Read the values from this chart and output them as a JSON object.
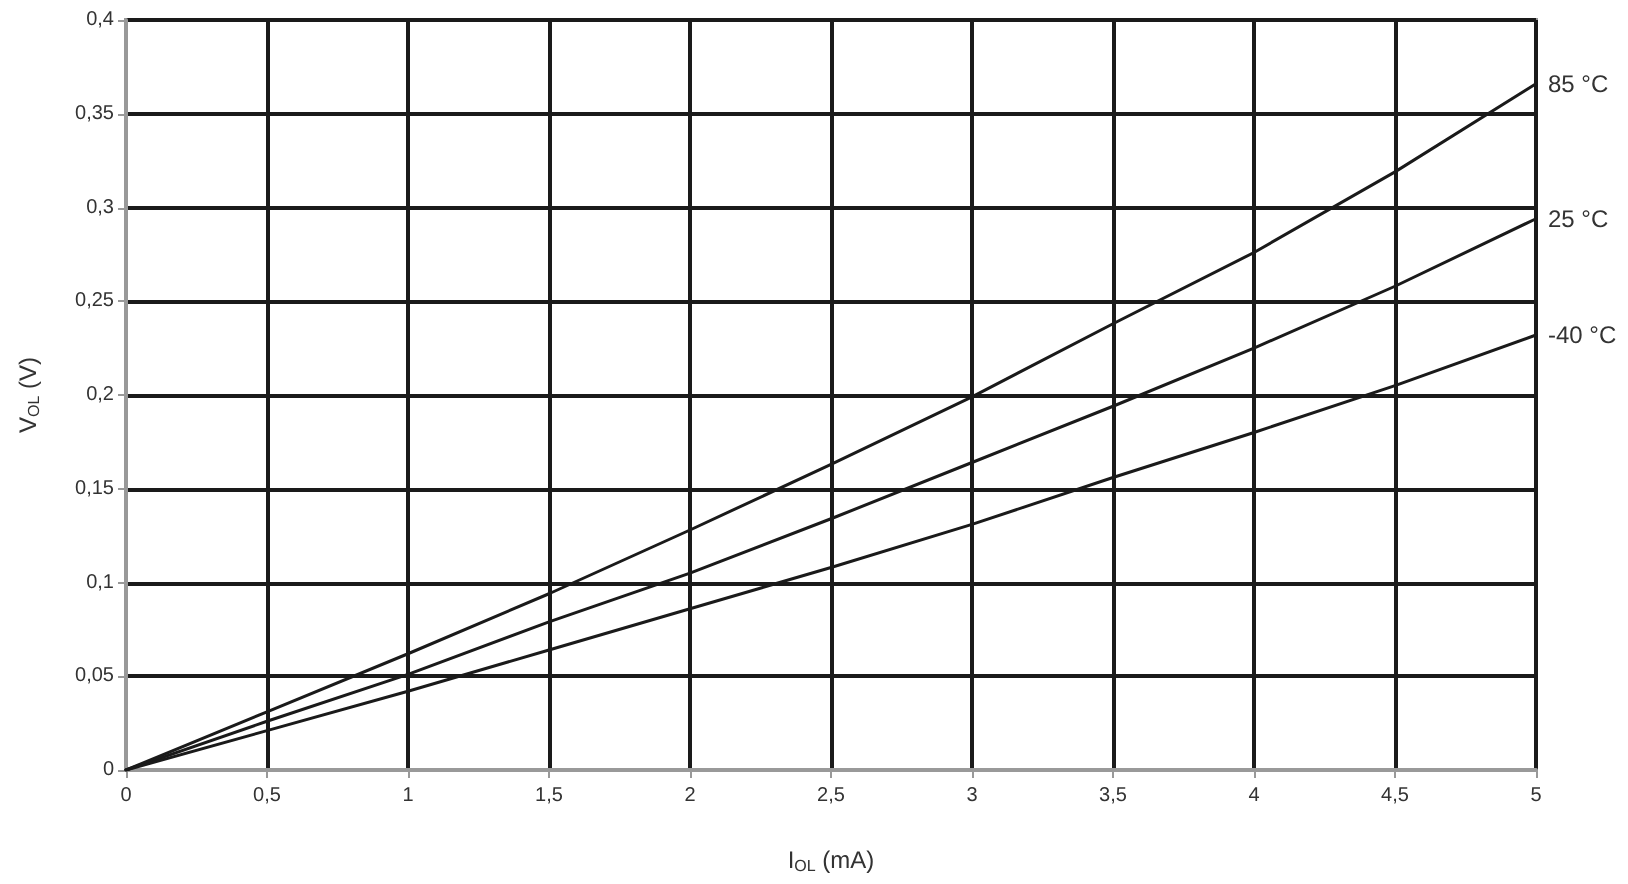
{
  "chart_data": {
    "type": "line",
    "xlabel": "I$_{OL}$ (mA)",
    "ylabel": "V$_{OL}$ (V)",
    "grid": true,
    "marker": "none",
    "line_style": "solid",
    "x": [
      0,
      0.5,
      1,
      1.5,
      2,
      2.5,
      3,
      3.5,
      4,
      4.5,
      5
    ],
    "series": [
      {
        "name": "85 °C",
        "color": "#1a1a1a",
        "values": [
          0,
          0.031,
          0.062,
          0.094,
          0.128,
          0.163,
          0.199,
          0.238,
          0.276,
          0.319,
          0.366
        ]
      },
      {
        "name": "25 °C",
        "color": "#1a1a1a",
        "values": [
          0,
          0.026,
          0.051,
          0.079,
          0.105,
          0.134,
          0.164,
          0.194,
          0.225,
          0.258,
          0.294
        ]
      },
      {
        "name": "-40 °C",
        "color": "#1a1a1a",
        "values": [
          0,
          0.021,
          0.042,
          0.064,
          0.086,
          0.108,
          0.131,
          0.156,
          0.18,
          0.205,
          0.232
        ]
      }
    ],
    "xlim": [
      0,
      5
    ],
    "xticks": [
      0,
      {
        "value": 0.5,
        "label": "0,5"
      },
      1,
      {
        "value": 1.5,
        "label": "1,5"
      },
      2,
      {
        "value": 2.5,
        "label": "2,5"
      },
      3,
      {
        "value": 3.5,
        "label": "3,5"
      },
      4,
      {
        "value": 4.5,
        "label": "4,5"
      },
      5
    ],
    "ylim": [
      0,
      0.4
    ],
    "yticks": [
      0,
      {
        "value": 0.05,
        "label": "0,05"
      },
      {
        "value": 0.1,
        "label": "0,1"
      },
      {
        "value": 0.15,
        "label": "0,15"
      },
      {
        "value": 0.2,
        "label": "0,2"
      },
      {
        "value": 0.25,
        "label": "0,25"
      },
      {
        "value": 0.3,
        "label": "0,3"
      },
      {
        "value": 0.35,
        "label": "0,35"
      },
      {
        "value": 0.4,
        "label": "0,4"
      }
    ]
  }
}
